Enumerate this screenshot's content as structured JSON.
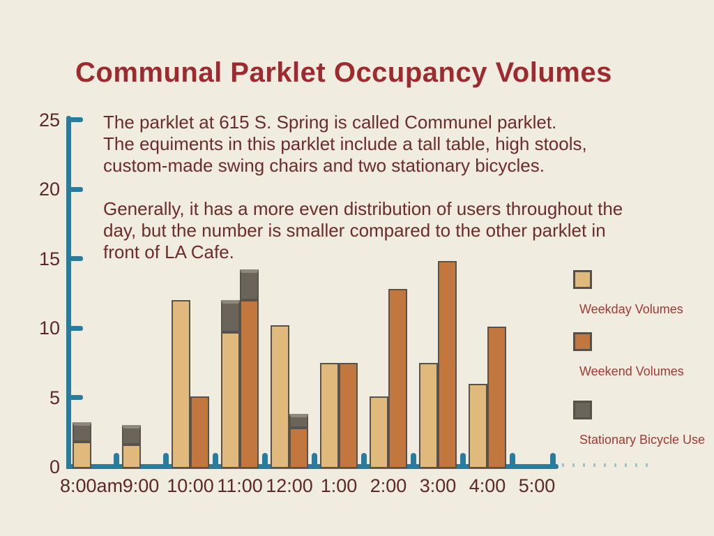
{
  "slide": {
    "title": "Communal Parklet Occupancy Volumes",
    "description_lines": [
      "The parklet at 615 S. Spring is called Communel parklet.",
      "The equiments in this parklet include a tall table, high stools,",
      "custom-made swing chairs and two stationary bicycles.",
      "",
      "Generally, it has a more even distribution of users throughout the",
      "day, but the number is smaller compared to the other parklet in",
      "front of LA Cafe."
    ]
  },
  "chart_data": {
    "type": "bar",
    "title": "Communal Parklet Occupancy Volumes",
    "categories": [
      "8:00am",
      "9:00",
      "10:00",
      "11:00",
      "12:00",
      "1:00",
      "2:00",
      "3:00",
      "4:00",
      "5:00"
    ],
    "series": [
      {
        "name": "Weekday Volumes",
        "color": "#e0b97c",
        "values": [
          1.8,
          1.6,
          12.0,
          9.7,
          10.2,
          7.5,
          5.1,
          7.5,
          6.0,
          0
        ]
      },
      {
        "name": "Weekend Volumes",
        "color": "#c1773e",
        "values": [
          0,
          0,
          5.1,
          12.0,
          2.8,
          7.5,
          12.8,
          14.8,
          10.1,
          0
        ]
      },
      {
        "name": "Stationary Bicycle Use",
        "color": "#6b645a",
        "stacked": true,
        "on_weekday": [
          1.4,
          1.4,
          0,
          2.3,
          0,
          0,
          0,
          0,
          0,
          0
        ],
        "on_weekend": [
          0,
          0,
          0,
          2.2,
          1.0,
          0,
          0,
          0,
          0,
          0
        ]
      }
    ],
    "xlabel": "",
    "ylabel": "",
    "ylim": [
      0,
      25
    ],
    "yticks": [
      0,
      5,
      10,
      15,
      20,
      25
    ],
    "grid": false,
    "legend_position": "right",
    "axis_color": "#287c9e",
    "bar_border_color": "#57524b",
    "label_color": "#5d2827",
    "legend_text_color": "#a23936"
  }
}
